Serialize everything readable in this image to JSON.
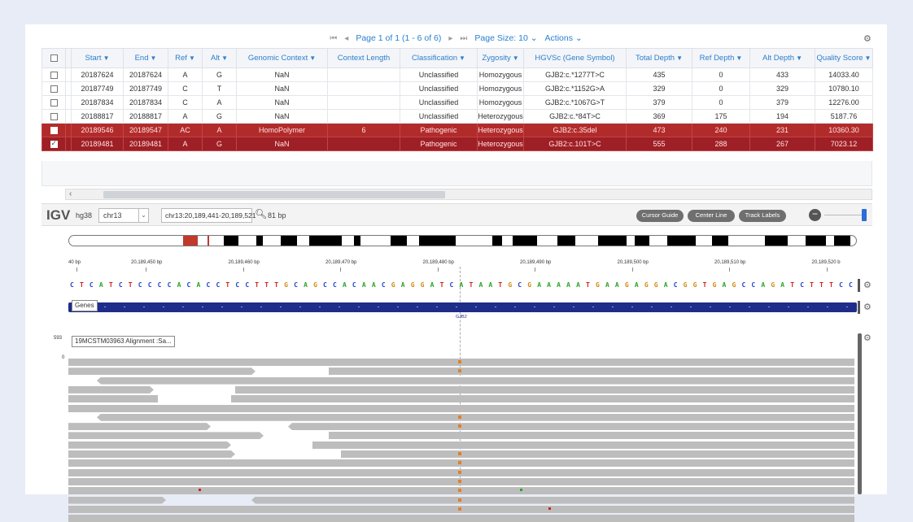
{
  "pager": {
    "first": "⏮",
    "prev": "◂",
    "page_text": "Page 1 of 1 (1 - 6 of 6)",
    "next": "▸",
    "last": "⏭",
    "page_size": "Page Size: 10 ⌄",
    "actions": "Actions ⌄"
  },
  "grid": {
    "columns": [
      "Start",
      "End",
      "Ref",
      "Alt",
      "Genomic Context",
      "Context Length",
      "Classification",
      "Zygosity",
      "HGVSc (Gene Symbol)",
      "Total Depth",
      "Ref Depth",
      "Alt Depth",
      "Quality Score"
    ],
    "rows": [
      [
        "20187624",
        "20187624",
        "A",
        "G",
        "NaN",
        "",
        "Unclassified",
        "Homozygous",
        "GJB2:c.*1277T>C",
        "435",
        "0",
        "433",
        "14033.40"
      ],
      [
        "20187749",
        "20187749",
        "C",
        "T",
        "NaN",
        "",
        "Unclassified",
        "Homozygous",
        "GJB2:c.*1152G>A",
        "329",
        "0",
        "329",
        "10780.10"
      ],
      [
        "20187834",
        "20187834",
        "C",
        "A",
        "NaN",
        "",
        "Unclassified",
        "Homozygous",
        "GJB2:c.*1067G>T",
        "379",
        "0",
        "379",
        "12276.00"
      ],
      [
        "20188817",
        "20188817",
        "A",
        "G",
        "NaN",
        "",
        "Unclassified",
        "Heterozygous",
        "GJB2:c.*84T>C",
        "369",
        "175",
        "194",
        "5187.76"
      ],
      [
        "20189546",
        "20189547",
        "AC",
        "A",
        "HomoPolymer",
        "6",
        "Pathogenic",
        "Heterozygous",
        "GJB2:c.35del",
        "473",
        "240",
        "231",
        "10360.30"
      ],
      [
        "20189481",
        "20189481",
        "A",
        "G",
        "NaN",
        "",
        "Pathogenic",
        "Heterozygous",
        "GJB2:c.101T>C",
        "555",
        "288",
        "267",
        "7023.12"
      ]
    ]
  },
  "igv": {
    "logo": "IGV",
    "genome": "hg38",
    "chromosome": "chr13",
    "locus": "chr13:20,189,441-20,189,521",
    "width_bp": "81 bp",
    "buttons": {
      "cursor_guide": "Cursor Guide",
      "center_line": "Center Line",
      "track_labels": "Track Labels"
    },
    "ruler_ticks": [
      "40 bp",
      "20,189,450 bp",
      "20,189,460 bp",
      "20,189,470 bp",
      "20,189,480 bp",
      "20,189,490 bp",
      "20,189,500 bp",
      "20,189,510 bp",
      "20,189,520 b"
    ],
    "sequence": "CTCATCTCCCCACACCTCCTTTGCAGCCACAACGAGGATCATAATGCGAAAAATGAAGAGGACGGTGAGCCAGATCTTTCC",
    "genes_label": "Genes",
    "gene_name": "GJB2",
    "alignment_label": "19MCSTM03963 Alignment :Sa...",
    "coverage_max": "593",
    "coverage_min": "0"
  },
  "colors": {
    "selected_row": "#b22b2b",
    "accent_blue": "#2a7fd0",
    "gene_track": "#1f2d8a",
    "snp": "#e0802a"
  }
}
